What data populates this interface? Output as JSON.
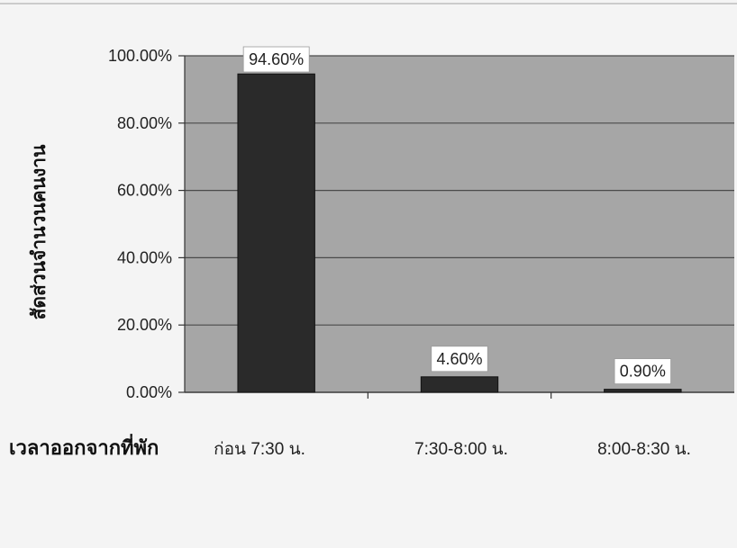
{
  "chart_data": {
    "type": "bar",
    "title": "",
    "xlabel": "เวลาออกจากที่พัก",
    "ylabel": "สัดส่วนจำนวนคนงาน",
    "categories": [
      "ก่อน 7:30 น.",
      "7:30-8:00 น.",
      "8:00-8:30 น."
    ],
    "values": [
      94.6,
      4.6,
      0.9
    ],
    "data_labels": [
      "94.60%",
      "4.60%",
      "0.90%"
    ],
    "y_ticks": [
      "0.00%",
      "20.00%",
      "40.00%",
      "60.00%",
      "80.00%",
      "100.00%"
    ],
    "ylim": [
      0,
      100
    ],
    "grid": true,
    "legend": "none",
    "colors": {
      "bar": "#2a2a2a",
      "plot_bg": "#a6a6a6",
      "gridline": "#4a4a4a",
      "label_box": "#ffffff"
    }
  }
}
